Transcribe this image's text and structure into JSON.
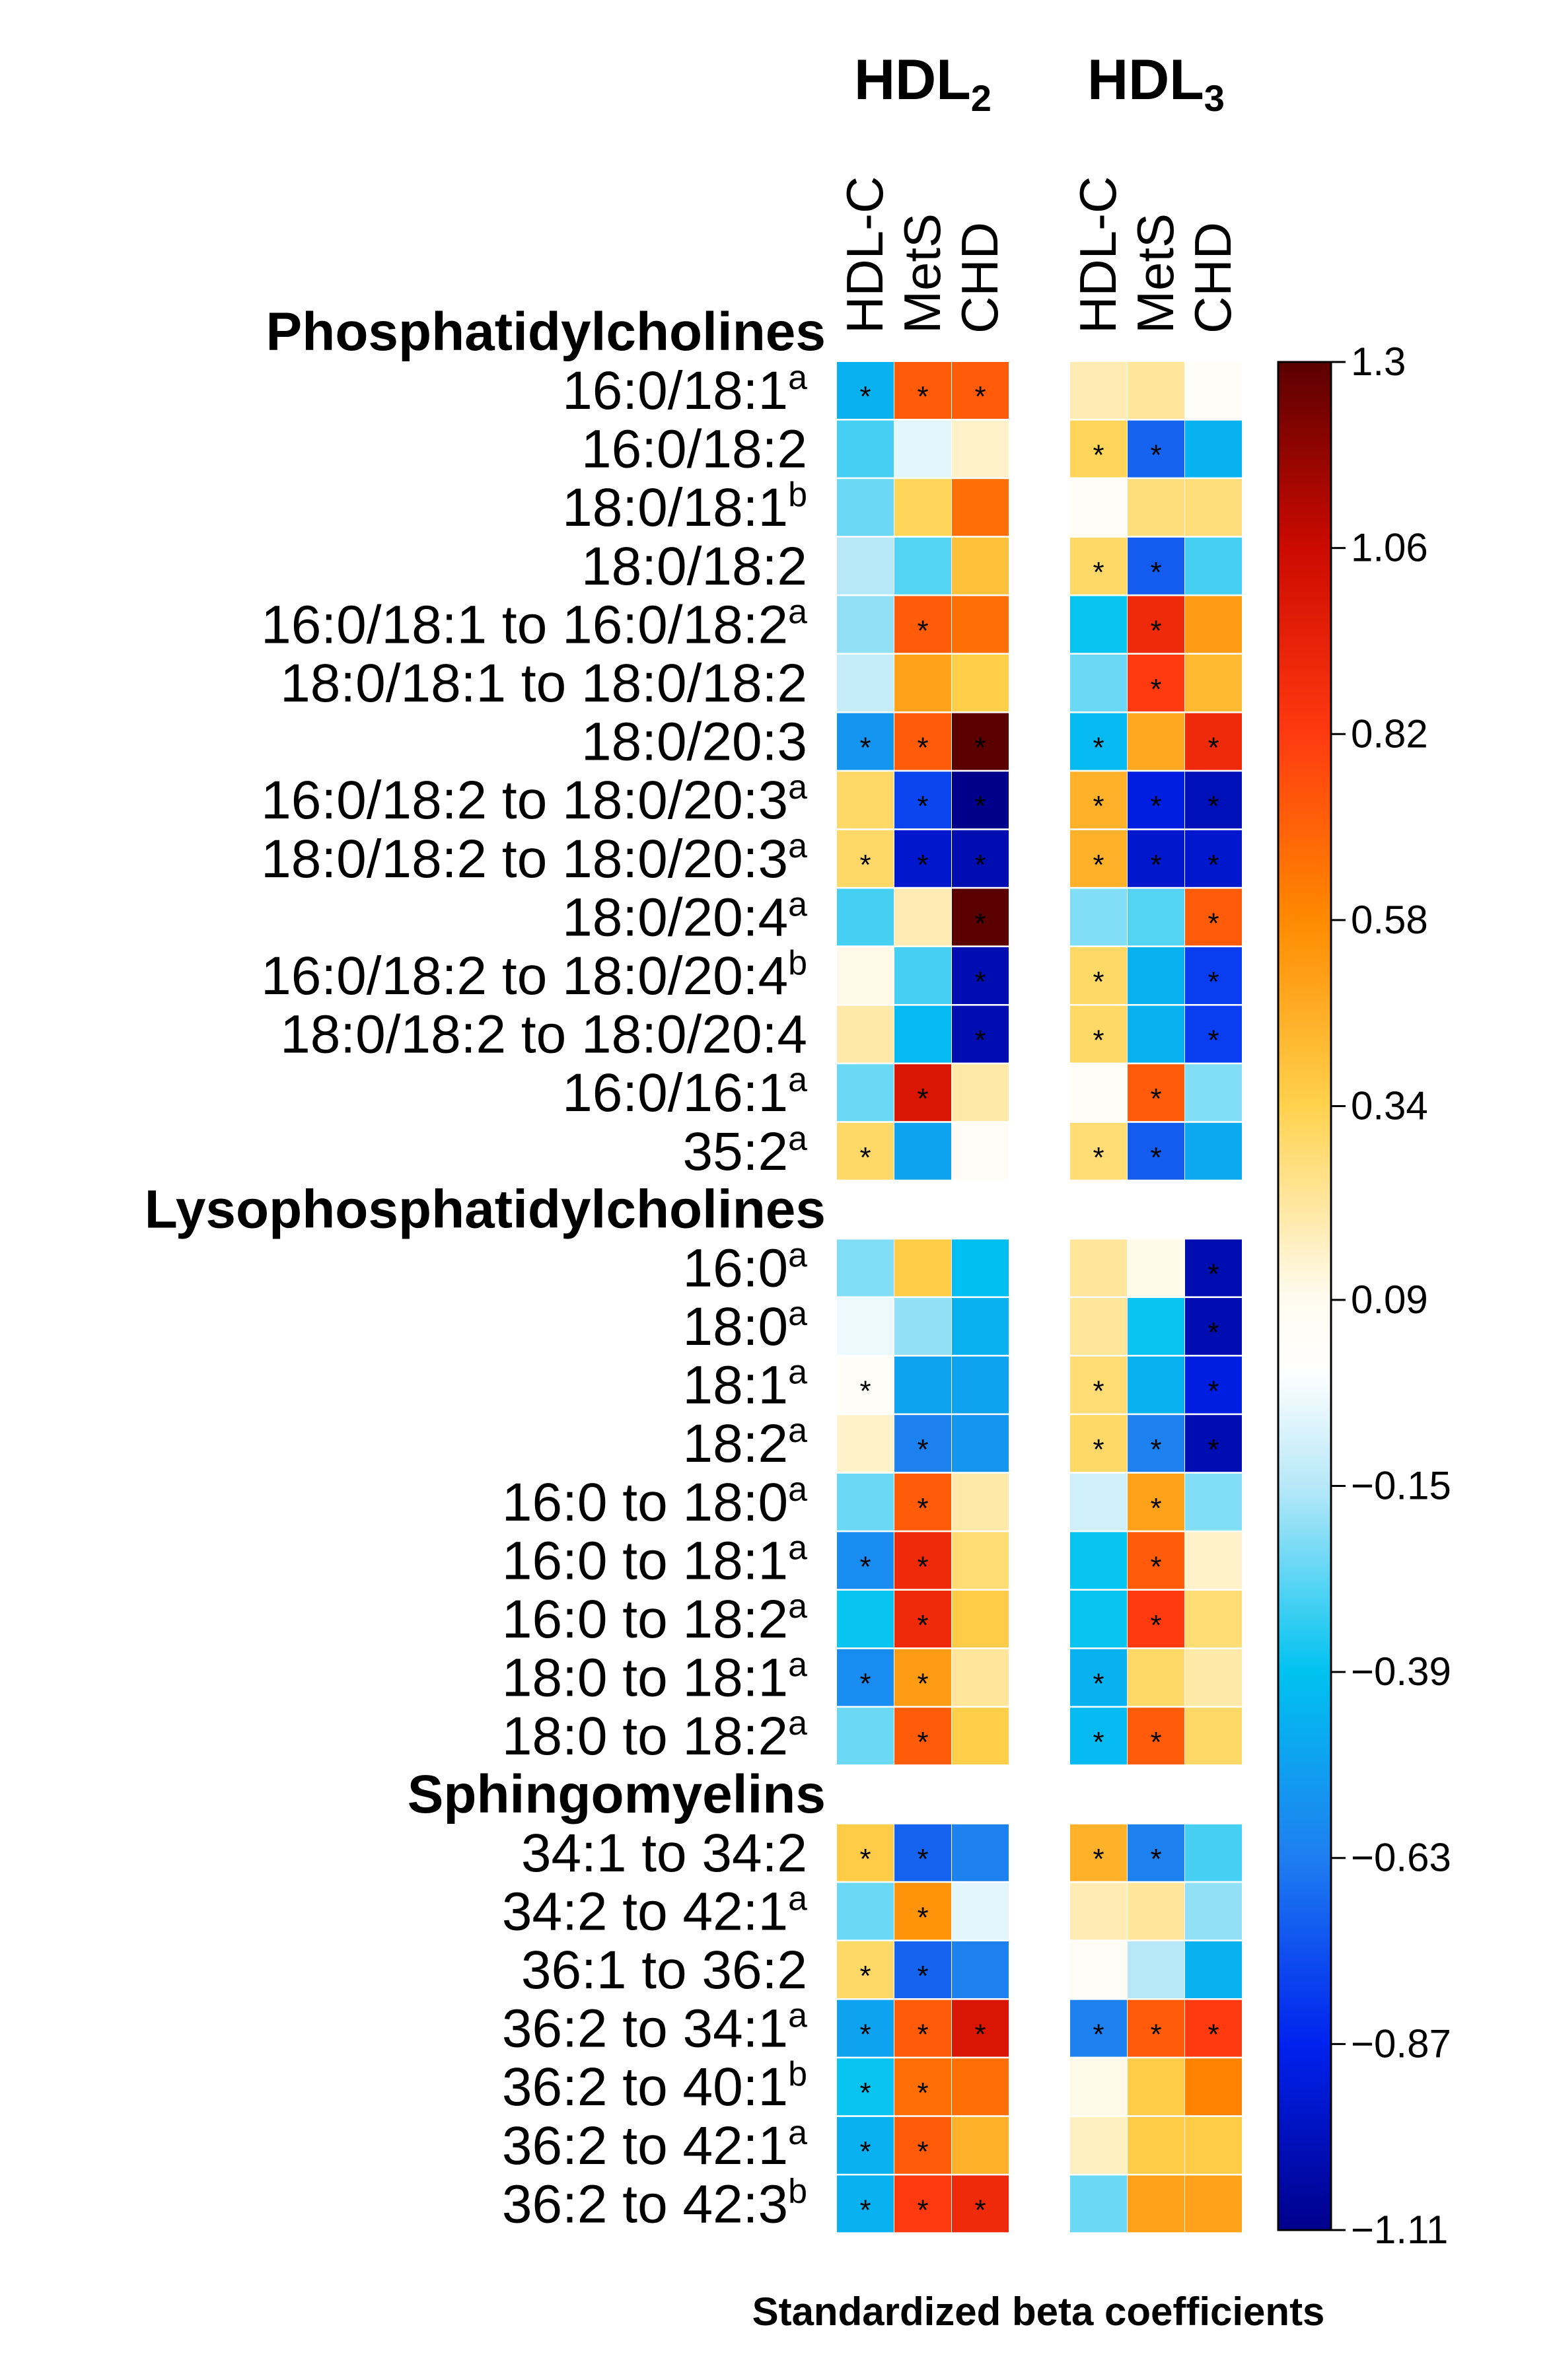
{
  "chart_data": {
    "type": "heatmap",
    "title": "",
    "groups": [
      {
        "label_base": "HDL",
        "label_sub": "2",
        "columns": [
          "HDL-C",
          "MetS",
          "CHD"
        ]
      },
      {
        "label_base": "HDL",
        "label_sub": "3",
        "columns": [
          "HDL-C",
          "MetS",
          "CHD"
        ]
      }
    ],
    "sections": [
      {
        "title": "Phosphatidylcholines",
        "rows": [
          {
            "label": "16:0/18:1",
            "sup": "a",
            "values": [
              -0.45,
              0.72,
              0.72,
              0.18,
              0.22,
              0.05
            ],
            "sig": [
              1,
              1,
              1,
              0,
              0,
              0
            ]
          },
          {
            "label": "16:0/18:2",
            "sup": "",
            "values": [
              -0.3,
              -0.06,
              0.15,
              0.32,
              -0.7,
              -0.45
            ],
            "sig": [
              0,
              0,
              0,
              1,
              1,
              0
            ]
          },
          {
            "label": "18:0/18:1",
            "sup": "b",
            "values": [
              -0.25,
              0.32,
              0.66,
              0.04,
              0.27,
              0.27
            ],
            "sig": [
              0,
              0,
              0,
              0,
              0,
              0
            ]
          },
          {
            "label": "18:0/18:2",
            "sup": "",
            "values": [
              -0.15,
              -0.28,
              0.4,
              0.3,
              -0.72,
              -0.3
            ],
            "sig": [
              0,
              0,
              0,
              1,
              1,
              0
            ]
          },
          {
            "label": "16:0/18:1 to 16:0/18:2",
            "sup": "a",
            "values": [
              -0.2,
              0.72,
              0.66,
              -0.38,
              0.9,
              0.52
            ],
            "sig": [
              0,
              1,
              0,
              0,
              1,
              0
            ]
          },
          {
            "label": "18:0/18:1 to 18:0/18:2",
            "sup": "",
            "values": [
              -0.12,
              0.5,
              0.35,
              -0.25,
              0.82,
              0.42
            ],
            "sig": [
              0,
              0,
              0,
              0,
              1,
              0
            ]
          },
          {
            "label": "18:0/20:3",
            "sup": "",
            "values": [
              -0.55,
              0.72,
              1.3,
              -0.42,
              0.48,
              0.9
            ],
            "sig": [
              1,
              1,
              1,
              1,
              0,
              1
            ]
          },
          {
            "label": "16:0/18:2 to 18:0/20:3",
            "sup": "a",
            "values": [
              0.3,
              -0.78,
              -1.11,
              0.45,
              -0.9,
              -1.0
            ],
            "sig": [
              0,
              1,
              1,
              1,
              1,
              1
            ]
          },
          {
            "label": "18:0/18:2 to 18:0/20:3",
            "sup": "a",
            "values": [
              0.3,
              -0.95,
              -1.02,
              0.45,
              -0.95,
              -0.95
            ],
            "sig": [
              1,
              1,
              1,
              1,
              1,
              1
            ]
          },
          {
            "label": "18:0/20:4",
            "sup": "a",
            "values": [
              -0.3,
              0.18,
              1.3,
              -0.22,
              -0.28,
              0.72
            ],
            "sig": [
              0,
              0,
              1,
              0,
              0,
              1
            ]
          },
          {
            "label": "16:0/18:2 to 18:0/20:4",
            "sup": "b",
            "values": [
              0.1,
              -0.3,
              -1.02,
              0.3,
              -0.45,
              -0.8
            ],
            "sig": [
              0,
              0,
              1,
              1,
              0,
              1
            ]
          },
          {
            "label": "18:0/18:2 to 18:0/20:4",
            "sup": "",
            "values": [
              0.2,
              -0.42,
              -1.02,
              0.3,
              -0.45,
              -0.8
            ],
            "sig": [
              0,
              0,
              1,
              1,
              0,
              1
            ]
          },
          {
            "label": "16:0/16:1",
            "sup": "a",
            "values": [
              -0.25,
              1.0,
              0.2,
              0.05,
              0.72,
              -0.22
            ],
            "sig": [
              0,
              1,
              0,
              0,
              1,
              0
            ]
          },
          {
            "label": "35:2",
            "sup": "a",
            "values": [
              0.3,
              -0.5,
              0.06,
              0.28,
              -0.72,
              -0.48
            ],
            "sig": [
              1,
              0,
              0,
              1,
              1,
              0
            ]
          }
        ]
      },
      {
        "title": "Lysophosphatidylcholines",
        "rows": [
          {
            "label": "16:0",
            "sup": "a",
            "values": [
              -0.22,
              0.36,
              -0.4,
              0.22,
              0.1,
              -1.02
            ],
            "sig": [
              0,
              0,
              0,
              0,
              0,
              1
            ]
          },
          {
            "label": "18:0",
            "sup": "a",
            "values": [
              -0.04,
              -0.2,
              -0.45,
              0.22,
              -0.38,
              -1.02
            ],
            "sig": [
              0,
              0,
              0,
              0,
              0,
              1
            ]
          },
          {
            "label": "18:1",
            "sup": "a",
            "values": [
              0.04,
              -0.5,
              -0.5,
              0.28,
              -0.45,
              -0.9
            ],
            "sig": [
              1,
              0,
              0,
              1,
              0,
              1
            ]
          },
          {
            "label": "18:2",
            "sup": "a",
            "values": [
              0.15,
              -0.62,
              -0.55,
              0.3,
              -0.62,
              -1.02
            ],
            "sig": [
              0,
              1,
              0,
              1,
              1,
              1
            ]
          },
          {
            "label": "16:0 to 18:0",
            "sup": "a",
            "values": [
              -0.25,
              0.72,
              0.2,
              -0.1,
              0.5,
              -0.22
            ],
            "sig": [
              0,
              1,
              0,
              0,
              1,
              0
            ]
          },
          {
            "label": "16:0 to 18:1",
            "sup": "a",
            "values": [
              -0.58,
              0.9,
              0.28,
              -0.38,
              0.72,
              0.15
            ],
            "sig": [
              1,
              1,
              0,
              0,
              1,
              0
            ]
          },
          {
            "label": "16:0 to 18:2",
            "sup": "a",
            "values": [
              -0.38,
              0.9,
              0.36,
              -0.38,
              0.82,
              0.28
            ],
            "sig": [
              0,
              1,
              0,
              0,
              1,
              0
            ]
          },
          {
            "label": "18:0 to 18:1",
            "sup": "a",
            "values": [
              -0.58,
              0.52,
              0.22,
              -0.45,
              0.3,
              0.2
            ],
            "sig": [
              1,
              1,
              0,
              1,
              0,
              0
            ]
          },
          {
            "label": "18:0 to 18:2",
            "sup": "a",
            "values": [
              -0.25,
              0.72,
              0.35,
              -0.42,
              0.72,
              0.3
            ],
            "sig": [
              0,
              1,
              0,
              1,
              1,
              0
            ]
          }
        ]
      },
      {
        "title": "Sphingomyelins",
        "rows": [
          {
            "label": "34:1 to 34:2",
            "sup": "",
            "values": [
              0.36,
              -0.7,
              -0.62,
              0.45,
              -0.62,
              -0.3
            ],
            "sig": [
              1,
              1,
              0,
              1,
              1,
              0
            ]
          },
          {
            "label": "34:2 to 42:1",
            "sup": "a",
            "values": [
              -0.25,
              0.55,
              -0.06,
              0.18,
              0.22,
              -0.2
            ],
            "sig": [
              0,
              1,
              0,
              0,
              0,
              0
            ]
          },
          {
            "label": "36:1 to 36:2",
            "sup": "",
            "values": [
              0.3,
              -0.7,
              -0.62,
              0.06,
              -0.15,
              -0.45
            ],
            "sig": [
              1,
              1,
              0,
              0,
              0,
              0
            ]
          },
          {
            "label": "36:2 to 34:1",
            "sup": "a",
            "values": [
              -0.5,
              0.72,
              1.0,
              -0.62,
              0.72,
              0.82
            ],
            "sig": [
              1,
              1,
              1,
              1,
              1,
              1
            ]
          },
          {
            "label": "36:2 to 40:1",
            "sup": "b",
            "values": [
              -0.38,
              0.66,
              0.66,
              0.1,
              0.36,
              0.6
            ],
            "sig": [
              1,
              1,
              0,
              0,
              0,
              0
            ]
          },
          {
            "label": "36:2 to 42:1",
            "sup": "a",
            "values": [
              -0.45,
              0.72,
              0.45,
              0.16,
              0.36,
              0.36
            ],
            "sig": [
              1,
              1,
              0,
              0,
              0,
              0
            ]
          },
          {
            "label": "36:2 to 42:3",
            "sup": "b",
            "values": [
              -0.45,
              0.82,
              0.9,
              -0.25,
              0.5,
              0.5
            ],
            "sig": [
              1,
              1,
              1,
              0,
              0,
              0
            ]
          }
        ]
      }
    ],
    "colorbar": {
      "ticks": [
        1.3,
        1.06,
        0.82,
        0.58,
        0.34,
        0.09,
        -0.15,
        -0.39,
        -0.63,
        -0.87,
        -1.11
      ],
      "tick_labels": [
        "1.3",
        "1.06",
        "0.82",
        "0.58",
        "0.34",
        "0.09",
        "−0.15",
        "−0.39",
        "−0.63",
        "−0.87",
        "−1.11"
      ],
      "range": [
        -1.11,
        1.3
      ],
      "color_stops": [
        {
          "v": -1.11,
          "c": "#00008B"
        },
        {
          "v": -0.87,
          "c": "#0022EE"
        },
        {
          "v": -0.63,
          "c": "#1E7EF0"
        },
        {
          "v": -0.39,
          "c": "#00C2F0"
        },
        {
          "v": -0.15,
          "c": "#B7E8F8"
        },
        {
          "v": 0.0,
          "c": "#FFFFFF"
        },
        {
          "v": 0.09,
          "c": "#FFFBF0"
        },
        {
          "v": 0.34,
          "c": "#FFD24D"
        },
        {
          "v": 0.58,
          "c": "#FF8A00"
        },
        {
          "v": 0.82,
          "c": "#FF3A10"
        },
        {
          "v": 1.06,
          "c": "#CC0A00"
        },
        {
          "v": 1.3,
          "c": "#5A0000"
        }
      ]
    },
    "significance_marker": "*",
    "xlabel": "Standardized beta coefficients"
  }
}
